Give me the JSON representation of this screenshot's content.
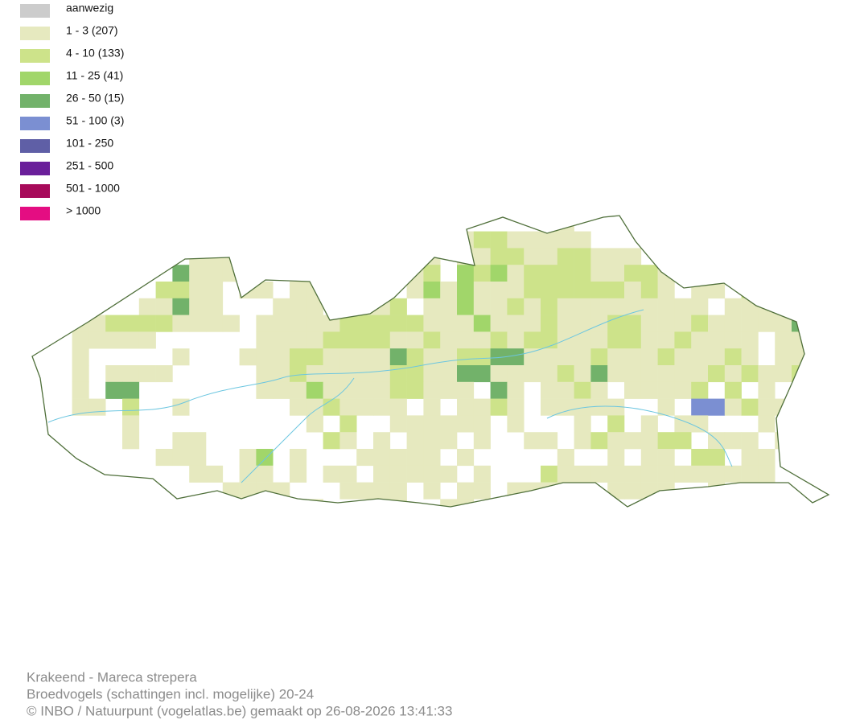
{
  "legend": {
    "items": [
      {
        "label": "aanwezig",
        "color": "#cccccc"
      },
      {
        "label": "1 - 3 (207)",
        "color": "#e6e9bf"
      },
      {
        "label": "4 - 10 (133)",
        "color": "#cde38a"
      },
      {
        "label": "11 - 25 (41)",
        "color": "#a1d66a"
      },
      {
        "label": "26 - 50 (15)",
        "color": "#72b26a"
      },
      {
        "label": "51 - 100 (3)",
        "color": "#7b8fd2"
      },
      {
        "label": "101 - 250",
        "color": "#5f5fa6"
      },
      {
        "label": "251 - 500",
        "color": "#6a1f9a"
      },
      {
        "label": "501 - 1000",
        "color": "#a70a5a"
      },
      {
        "label": "> 1000",
        "color": "#e40d82"
      }
    ]
  },
  "caption": {
    "lines": [
      "Krakeend - Mareca strepera",
      "Broedvogels (schattingen incl. mogelijke) 20-24",
      "© INBO / Natuurpunt (vogelatlas.be) gemaakt op 26-08-2026 13:41:33"
    ]
  }
}
